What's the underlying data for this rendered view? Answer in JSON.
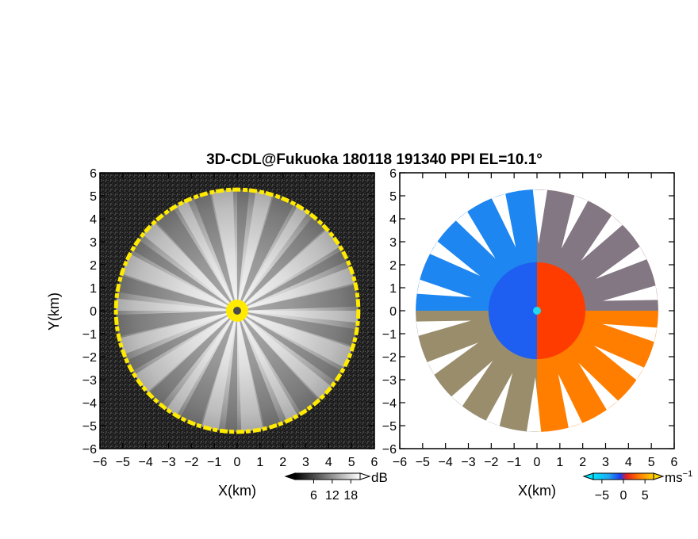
{
  "chart_data": [
    {
      "type": "heatmap",
      "title": "3D-CDL@Fukuoka 180118 191340 PPI EL=10.1°",
      "xlabel": "X(km)",
      "ylabel": "Y(km)",
      "xlim": [
        -6,
        6
      ],
      "ylim": [
        -6,
        6
      ],
      "xticks": [
        -6,
        -5,
        -4,
        -3,
        -2,
        -1,
        0,
        1,
        2,
        3,
        4,
        5,
        6
      ],
      "yticks": [
        -6,
        -5,
        -4,
        -3,
        -2,
        -1,
        0,
        1,
        2,
        3,
        4,
        5,
        6
      ],
      "colorbar": {
        "unit": "dB",
        "ticks": [
          6,
          12,
          18
        ],
        "colormap": "grayscale",
        "range": [
          0,
          21
        ]
      },
      "observed_range_km": 5.3,
      "colors": {
        "background": "#1c1c1c",
        "edge_echo": "#ffea00",
        "center": "#4a4a4a"
      }
    },
    {
      "type": "heatmap",
      "xlabel": "X(km)",
      "ylabel": "",
      "xlim": [
        -6,
        6
      ],
      "ylim": [
        -6,
        6
      ],
      "xticks": [
        -6,
        -5,
        -4,
        -3,
        -2,
        -1,
        0,
        1,
        2,
        3,
        4,
        5,
        6
      ],
      "yticks": [
        -6,
        -5,
        -4,
        -3,
        -2,
        -1,
        0,
        1,
        2,
        3,
        4,
        5,
        6
      ],
      "colorbar": {
        "unit": "ms",
        "unit_exponent": "−1",
        "ticks": [
          -5,
          0,
          5
        ],
        "colormap": "cyan-blue-red-orange-yellow",
        "range": [
          -7,
          7
        ]
      },
      "observed_range_km": 5.3,
      "colors": {
        "toward": "#1e5ef0",
        "toward_far": "#1ea8f0",
        "away": "#ff3c00",
        "away_far": "#ffb400",
        "center": "#20d8f0"
      }
    }
  ]
}
